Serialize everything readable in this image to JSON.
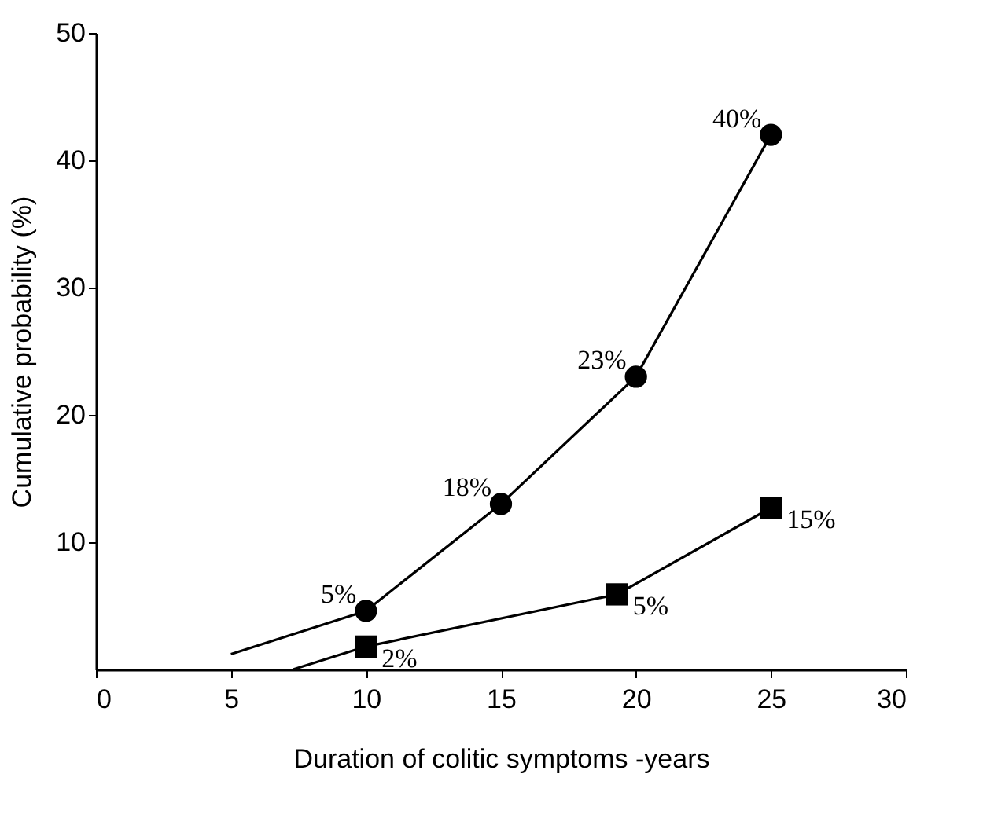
{
  "chart_data": {
    "type": "line",
    "xlabel": "Duration of colitic symptoms -years",
    "ylabel": "Cumulative probability (%)",
    "xlim": [
      0,
      30
    ],
    "xticks": [
      0,
      5,
      10,
      15,
      20,
      25,
      30
    ],
    "ylim": [
      0,
      50
    ],
    "yticks": [
      10,
      20,
      30,
      40,
      50
    ],
    "grid": false,
    "series": [
      {
        "color": "#000000",
        "marker": "none",
        "x": [
          5,
          10,
          15,
          20,
          25
        ],
        "values": [
          1.2,
          4.6,
          13,
          23,
          42
        ]
      },
      {
        "type": "scatter",
        "color": "#000000",
        "marker": "circle",
        "x": [
          10,
          15,
          20,
          25
        ],
        "values": [
          4.6,
          13,
          23,
          42
        ]
      },
      {
        "color": "#000000",
        "marker": "none",
        "x": [
          7.3,
          10,
          19.3,
          25
        ],
        "values": [
          0,
          1.8,
          5.9,
          12.7
        ]
      },
      {
        "type": "scatter",
        "color": "#000000",
        "marker": "square",
        "x": [
          10,
          19.3,
          25
        ],
        "values": [
          1.8,
          5.9,
          12.7
        ]
      }
    ],
    "annotations": [
      {
        "text": "5%",
        "x": 10,
        "y": 4.6
      },
      {
        "text": "18%",
        "x": 15,
        "y": 13
      },
      {
        "text": "23%",
        "x": 20,
        "y": 23
      },
      {
        "text": "40%",
        "x": 25,
        "y": 42
      },
      {
        "text": "2%",
        "x": 10,
        "y": 1.8
      },
      {
        "text": "5%",
        "x": 19.3,
        "y": 5.9
      },
      {
        "text": "15%",
        "x": 25,
        "y": 12.7
      }
    ]
  }
}
